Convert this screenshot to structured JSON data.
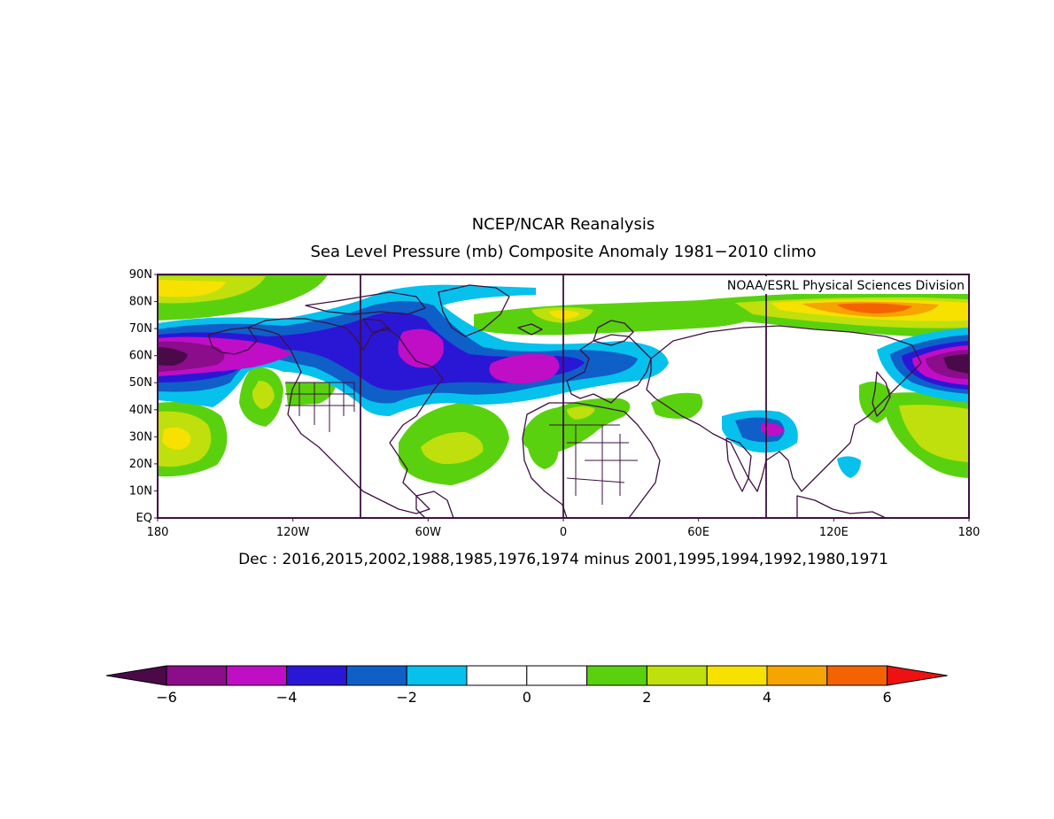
{
  "header": {
    "title_line1": "NCEP/NCAR Reanalysis",
    "title_line2": "Sea Level Pressure (mb) Composite Anomaly 1981−2010 climo"
  },
  "map": {
    "credit": "NOAA/ESRL Physical Sciences Division",
    "projection": "equirectangular",
    "lon_range": [
      -180,
      180
    ],
    "lat_range": [
      0,
      90
    ],
    "y_ticks": [
      "90N",
      "80N",
      "70N",
      "60N",
      "50N",
      "40N",
      "30N",
      "20N",
      "10N",
      "EQ"
    ],
    "x_ticks": [
      "180",
      "120W",
      "60W",
      "0",
      "60E",
      "120E",
      "180"
    ]
  },
  "caption": "Dec : 2016,2015,2002,1988,1985,1976,1974 minus 2001,1995,1994,1992,1980,1971",
  "colorbar": {
    "tick_labels": [
      "−6",
      "−4",
      "−2",
      "0",
      "2",
      "4",
      "6"
    ],
    "low_end_color": "#4a0a4a",
    "high_end_color": "#ee1111",
    "colors": [
      "#8b0d8b",
      "#c00ec6",
      "#2a17d6",
      "#0f5fc8",
      "#06c1ec",
      "#ffffff",
      "#ffffff",
      "#5ad10e",
      "#bfe00c",
      "#f6e100",
      "#f6a400",
      "#f56300"
    ]
  }
}
